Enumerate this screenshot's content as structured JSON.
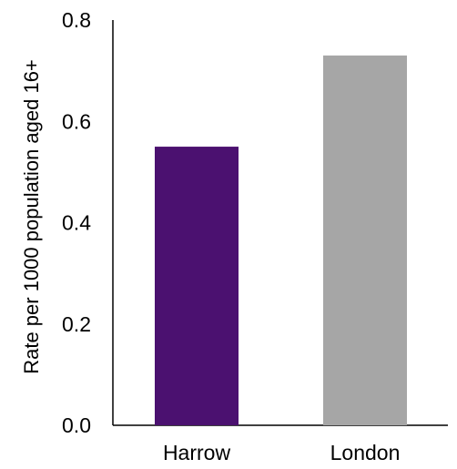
{
  "chart_data": {
    "type": "bar",
    "title": "",
    "xlabel": "",
    "ylabel": "Rate per 1000 population aged 16+",
    "categories": [
      "Harrow",
      "London"
    ],
    "values": [
      0.55,
      0.73
    ],
    "bar_colors": [
      "#4b1170",
      "#a6a6a6"
    ],
    "ylim": [
      0,
      0.8
    ],
    "yticks": [
      0.0,
      0.2,
      0.4,
      0.6,
      0.8
    ],
    "ytick_labels": [
      "0.0",
      "0.2",
      "0.4",
      "0.6",
      "0.8"
    ],
    "grid": false,
    "legend": "none"
  }
}
